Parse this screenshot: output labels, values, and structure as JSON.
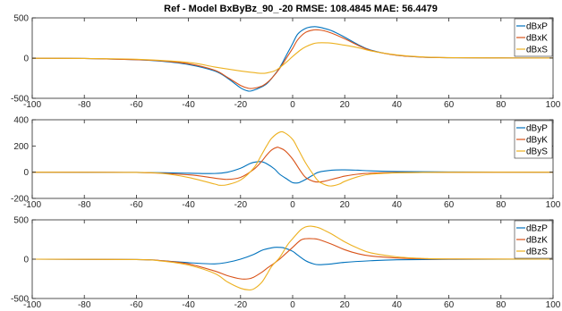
{
  "title": "Ref - Model  BxByBz_90_-20 RMSE: 108.4845 MAE: 56.4479",
  "colors": {
    "P": "#0072bd",
    "K": "#d95319",
    "S": "#edb120"
  },
  "chart_data": [
    {
      "type": "line",
      "xlim": [
        -100,
        100
      ],
      "ylim": [
        -500,
        500
      ],
      "xticks": [
        "-100",
        "-80",
        "-60",
        "-40",
        "-20",
        "0",
        "20",
        "40",
        "60",
        "80",
        "100"
      ],
      "yticks": [
        "-500",
        "0",
        "500"
      ],
      "legend_position": "top-right",
      "series": [
        {
          "name": "dBxP",
          "x": [
            -100,
            -80,
            -60,
            -50,
            -40,
            -30,
            -25,
            -20,
            -17,
            -15,
            -12,
            -10,
            -8,
            -5,
            -2,
            0,
            2,
            5,
            8,
            10,
            12,
            15,
            20,
            25,
            30,
            40,
            50,
            60,
            80,
            100
          ],
          "y": [
            -2,
            -5,
            -20,
            -40,
            -80,
            -160,
            -250,
            -370,
            -410,
            -400,
            -360,
            -320,
            -250,
            -120,
            60,
            180,
            300,
            370,
            390,
            385,
            370,
            340,
            260,
            170,
            100,
            35,
            12,
            5,
            2,
            1
          ]
        },
        {
          "name": "dBxK",
          "x": [
            -100,
            -80,
            -60,
            -50,
            -40,
            -30,
            -25,
            -20,
            -17,
            -15,
            -12,
            -10,
            -8,
            -5,
            -2,
            0,
            2,
            5,
            8,
            10,
            12,
            15,
            20,
            25,
            30,
            40,
            50,
            60,
            80,
            100
          ],
          "y": [
            -2,
            -5,
            -20,
            -35,
            -70,
            -150,
            -240,
            -340,
            -375,
            -375,
            -350,
            -310,
            -250,
            -130,
            20,
            120,
            230,
            320,
            350,
            350,
            340,
            310,
            240,
            160,
            95,
            35,
            12,
            5,
            2,
            1
          ]
        },
        {
          "name": "dBxS",
          "x": [
            -100,
            -80,
            -60,
            -40,
            -30,
            -20,
            -15,
            -12,
            -10,
            -7,
            -5,
            -2,
            0,
            3,
            5,
            8,
            10,
            13,
            15,
            20,
            25,
            30,
            40,
            50,
            60,
            80,
            100
          ],
          "y": [
            -2,
            -5,
            -15,
            -55,
            -110,
            -160,
            -180,
            -190,
            -185,
            -160,
            -120,
            -40,
            20,
            100,
            140,
            180,
            190,
            190,
            185,
            160,
            130,
            90,
            40,
            15,
            6,
            2,
            1
          ]
        }
      ]
    },
    {
      "type": "line",
      "xlim": [
        -100,
        100
      ],
      "ylim": [
        -200,
        400
      ],
      "xticks": [
        "-100",
        "-80",
        "-60",
        "-40",
        "-20",
        "0",
        "20",
        "40",
        "60",
        "80",
        "100"
      ],
      "yticks": [
        "-200",
        "0",
        "200",
        "400"
      ],
      "legend_position": "top-right",
      "series": [
        {
          "name": "dByP",
          "x": [
            -100,
            -60,
            -40,
            -30,
            -25,
            -20,
            -17,
            -15,
            -12,
            -10,
            -7,
            -5,
            -2,
            0,
            2,
            3,
            5,
            8,
            10,
            15,
            20,
            25,
            30,
            40,
            60,
            100
          ],
          "y": [
            0,
            -2,
            -8,
            -10,
            0,
            30,
            60,
            75,
            80,
            65,
            25,
            -15,
            -55,
            -80,
            -82,
            -75,
            -55,
            -20,
            0,
            15,
            18,
            15,
            10,
            5,
            2,
            0
          ]
        },
        {
          "name": "dByK",
          "x": [
            -100,
            -60,
            -40,
            -30,
            -25,
            -20,
            -15,
            -12,
            -10,
            -8,
            -6,
            -5,
            -3,
            0,
            3,
            5,
            8,
            10,
            12,
            15,
            18,
            20,
            25,
            30,
            40,
            60,
            100
          ],
          "y": [
            0,
            -2,
            -20,
            -45,
            -55,
            -40,
            20,
            80,
            130,
            170,
            190,
            185,
            165,
            100,
            10,
            -40,
            -70,
            -75,
            -70,
            -55,
            -40,
            -30,
            -15,
            -8,
            -3,
            -1,
            0
          ]
        },
        {
          "name": "dByS",
          "x": [
            -100,
            -60,
            -50,
            -40,
            -30,
            -28,
            -25,
            -20,
            -15,
            -12,
            -10,
            -8,
            -5,
            -3,
            0,
            2,
            5,
            8,
            10,
            13,
            15,
            18,
            20,
            25,
            30,
            40,
            50,
            60,
            100
          ],
          "y": [
            0,
            -2,
            -10,
            -40,
            -90,
            -100,
            -95,
            -60,
            30,
            130,
            200,
            260,
            305,
            300,
            250,
            180,
            70,
            -20,
            -70,
            -100,
            -105,
            -90,
            -70,
            -35,
            -15,
            -5,
            -2,
            -1,
            0
          ]
        }
      ]
    },
    {
      "type": "line",
      "xlim": [
        -100,
        100
      ],
      "ylim": [
        -500,
        500
      ],
      "xticks": [
        "-100",
        "-80",
        "-60",
        "-40",
        "-20",
        "0",
        "20",
        "40",
        "60",
        "80",
        "100"
      ],
      "yticks": [
        "-500",
        "0",
        "500"
      ],
      "legend_position": "top-right",
      "series": [
        {
          "name": "dBzP",
          "x": [
            -100,
            -60,
            -50,
            -40,
            -30,
            -25,
            -20,
            -15,
            -12,
            -10,
            -7,
            -5,
            -3,
            0,
            2,
            5,
            8,
            10,
            15,
            20,
            30,
            40,
            60,
            100
          ],
          "y": [
            0,
            -5,
            -20,
            -45,
            -60,
            -40,
            0,
            60,
            110,
            130,
            150,
            150,
            140,
            100,
            50,
            -20,
            -60,
            -70,
            -60,
            -40,
            -20,
            -8,
            -2,
            0
          ]
        },
        {
          "name": "dBzK",
          "x": [
            -100,
            -60,
            -50,
            -40,
            -30,
            -25,
            -20,
            -17,
            -15,
            -12,
            -10,
            -7,
            -5,
            -3,
            0,
            3,
            5,
            8,
            10,
            15,
            20,
            25,
            30,
            40,
            50,
            60,
            100
          ],
          "y": [
            0,
            -5,
            -20,
            -60,
            -150,
            -210,
            -250,
            -250,
            -230,
            -170,
            -120,
            -50,
            0,
            60,
            150,
            240,
            260,
            260,
            250,
            190,
            120,
            70,
            40,
            15,
            5,
            2,
            0
          ]
        },
        {
          "name": "dBzS",
          "x": [
            -100,
            -60,
            -50,
            -40,
            -30,
            -25,
            -20,
            -17,
            -15,
            -12,
            -10,
            -8,
            -5,
            -2,
            0,
            3,
            5,
            7,
            10,
            12,
            15,
            20,
            25,
            30,
            40,
            50,
            60,
            100
          ],
          "y": [
            0,
            -5,
            -25,
            -75,
            -180,
            -290,
            -370,
            -390,
            -380,
            -300,
            -200,
            -90,
            20,
            180,
            260,
            370,
            410,
            420,
            400,
            370,
            320,
            220,
            140,
            80,
            30,
            10,
            3,
            0
          ]
        }
      ]
    }
  ]
}
